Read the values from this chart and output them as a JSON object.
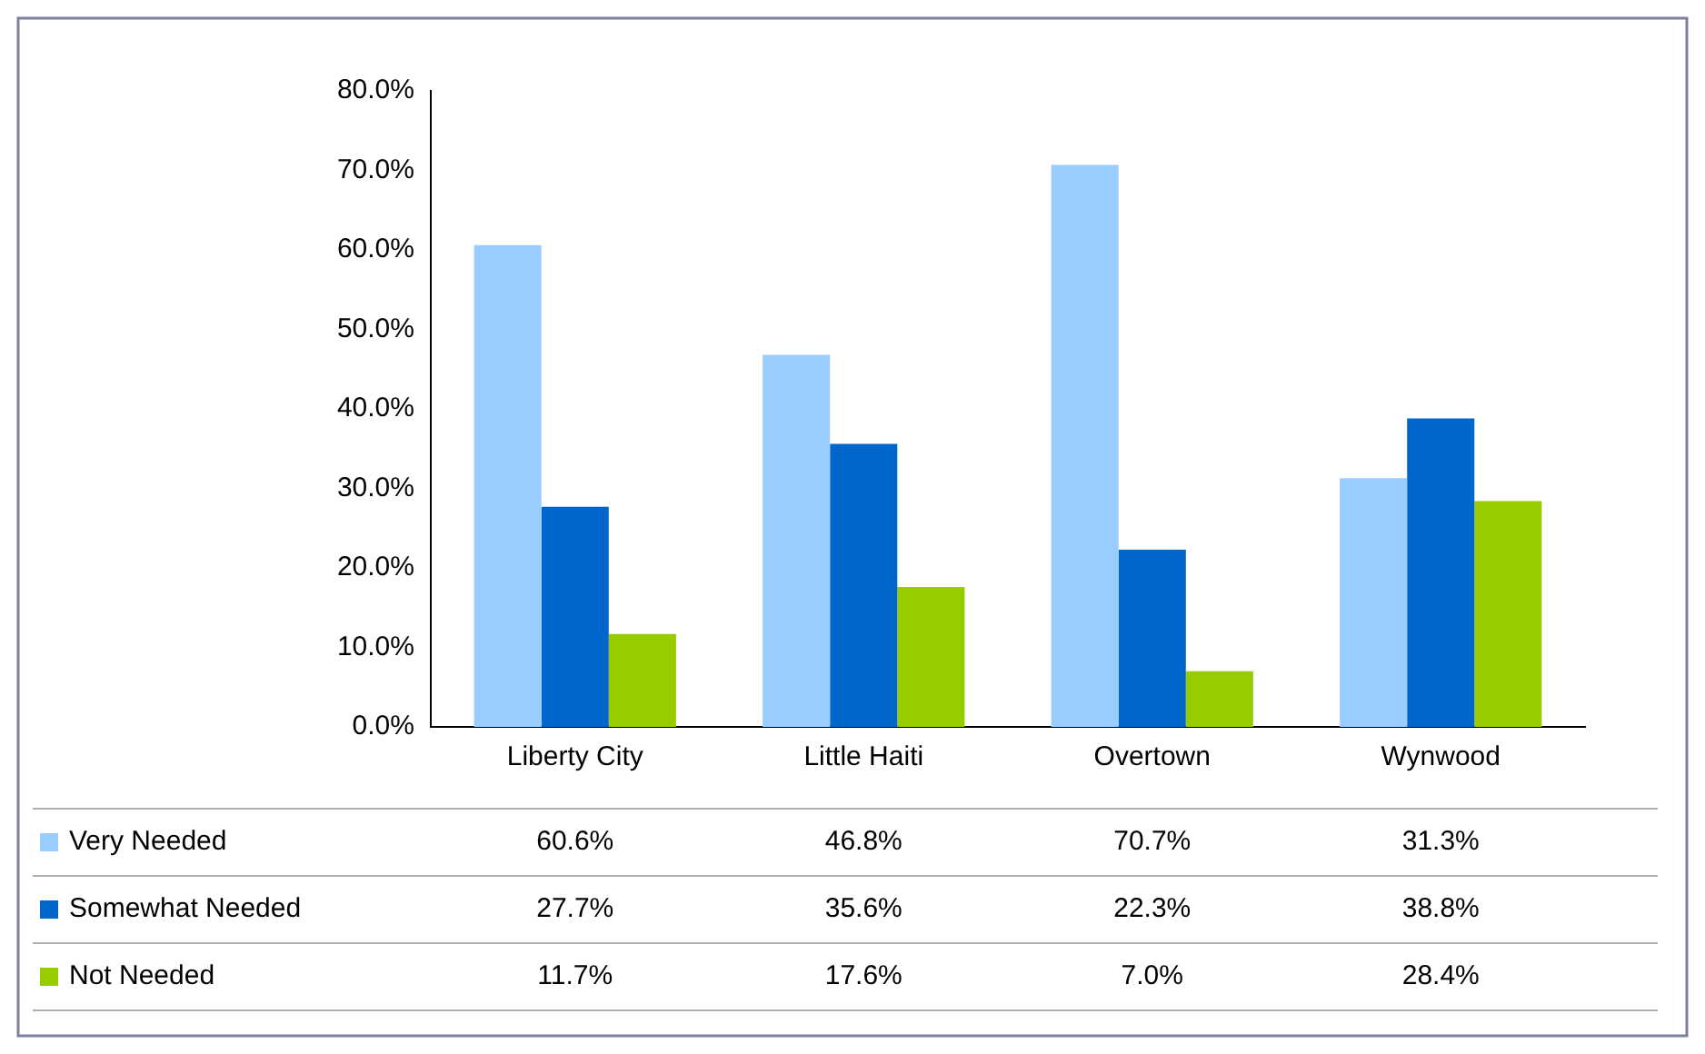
{
  "chart_data": {
    "type": "bar",
    "categories": [
      "Liberty City",
      "Little Haiti",
      "Overtown",
      "Wynwood"
    ],
    "series": [
      {
        "name": "Very Needed",
        "color": "#99ccff",
        "values": [
          60.6,
          46.8,
          70.7,
          31.3
        ],
        "value_labels": [
          "60.6%",
          "46.8%",
          "70.7%",
          "31.3%"
        ]
      },
      {
        "name": "Somewhat Needed",
        "color": "#0066cc",
        "values": [
          27.7,
          35.6,
          22.3,
          38.8
        ],
        "value_labels": [
          "27.7%",
          "35.6%",
          "22.3%",
          "38.8%"
        ]
      },
      {
        "name": "Not Needed",
        "color": "#99cc00",
        "values": [
          11.7,
          17.6,
          7.0,
          28.4
        ],
        "value_labels": [
          "11.7%",
          "17.6%",
          "7.0%",
          "28.4%"
        ]
      }
    ],
    "ylim": [
      0,
      80
    ],
    "yticks": [
      {
        "value": 0,
        "label": "0.0%"
      },
      {
        "value": 10,
        "label": "10.0%"
      },
      {
        "value": 20,
        "label": "20.0%"
      },
      {
        "value": 30,
        "label": "30.0%"
      },
      {
        "value": 40,
        "label": "40.0%"
      },
      {
        "value": 50,
        "label": "50.0%"
      },
      {
        "value": 60,
        "label": "60.0%"
      },
      {
        "value": 70,
        "label": "70.0%"
      },
      {
        "value": 80,
        "label": "80.0%"
      }
    ],
    "grid": false,
    "legend": "bottom"
  }
}
